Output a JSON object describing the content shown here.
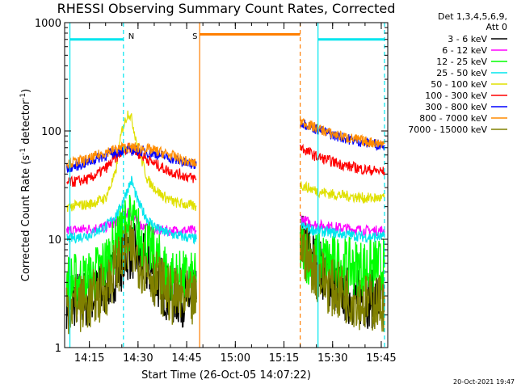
{
  "chart_data": {
    "type": "line",
    "title": "RHESSI Observing Summary Count Rates, Corrected",
    "xlabel": "Start Time (26-Oct-05 14:07:22)",
    "ylabel": "Corrected Count Rate (s⁻¹ detector⁻¹)",
    "ylabel_parts": [
      "Corrected Count Rate (s",
      "-1",
      " detector",
      "-1",
      ")"
    ],
    "y_scale": "log",
    "ylim": [
      1,
      1000
    ],
    "xlim": [
      "14:07:22",
      "15:47:00"
    ],
    "x_ticks": [
      "14:15",
      "14:30",
      "14:45",
      "15:00",
      "15:15",
      "15:30",
      "15:45"
    ],
    "y_ticks": [
      "1",
      "10",
      "100",
      "1000"
    ],
    "legend_header": [
      "Det 1,3,4,5,6,9,",
      "Att 0"
    ],
    "legend_position": "right",
    "gap": [
      "14:49:00",
      "15:20:00"
    ],
    "markers": [
      {
        "label": "",
        "time": "14:09:00",
        "color": "#00e5ee",
        "style": "solid"
      },
      {
        "label": "N",
        "time": "14:25:30",
        "color": "#00e5ee",
        "style": "dashed"
      },
      {
        "label": "",
        "time": "15:25:30",
        "color": "#00e5ee",
        "style": "solid"
      },
      {
        "label": "",
        "time": "15:46:00",
        "color": "#00e5ee",
        "style": "dashed"
      },
      {
        "label": "S",
        "time": "14:49:00",
        "color": "#ff7f00",
        "style": "solid"
      },
      {
        "label": "",
        "time": "15:20:00",
        "color": "#ff7f00",
        "style": "dashed"
      }
    ],
    "bars": [
      {
        "start": "14:09:00",
        "end": "14:25:30",
        "level": 700,
        "color": "#00e5ee"
      },
      {
        "start": "15:25:30",
        "end": "15:46:00",
        "level": 700,
        "color": "#00e5ee"
      },
      {
        "start": "14:49:00",
        "end": "15:20:00",
        "level": 780,
        "color": "#ff7f00"
      }
    ],
    "series": [
      {
        "name": "3 - 6 keV",
        "color": "#000000",
        "x": [
          "14:08",
          "14:15",
          "14:20",
          "14:23",
          "14:26",
          "14:28",
          "14:31",
          "14:35",
          "14:40",
          "14:48",
          "15:20",
          "15:21",
          "15:25",
          "15:30",
          "15:35",
          "15:40",
          "15:46"
        ],
        "y": [
          2.8,
          2.8,
          3.5,
          5.0,
          7.0,
          8.0,
          6.5,
          4.5,
          3.0,
          2.8,
          11.0,
          9.0,
          6.0,
          4.0,
          3.0,
          2.8,
          2.8
        ]
      },
      {
        "name": "6 - 12 keV",
        "color": "#ff00ff",
        "x": [
          "14:08",
          "14:15",
          "14:20",
          "14:24",
          "14:27",
          "14:30",
          "14:34",
          "14:40",
          "14:48",
          "15:20",
          "15:21",
          "15:25",
          "15:30",
          "15:35",
          "15:40",
          "15:46"
        ],
        "y": [
          12,
          12.5,
          13,
          15,
          18,
          14,
          12,
          12,
          12,
          16,
          15,
          13.5,
          13,
          12.5,
          12,
          12
        ]
      },
      {
        "name": "12 - 25 keV",
        "color": "#00ff00",
        "x": [
          "14:08",
          "14:15",
          "14:20",
          "14:23",
          "14:26",
          "14:28",
          "14:31",
          "14:35",
          "14:40",
          "14:48",
          "15:20",
          "15:21",
          "15:25",
          "15:30",
          "15:35",
          "15:40",
          "15:46"
        ],
        "y": [
          4.0,
          4.2,
          6.0,
          9.0,
          14.0,
          14.5,
          10.0,
          7.0,
          4.5,
          4.0,
          8.0,
          7.5,
          6.5,
          6.0,
          5.5,
          5.5,
          5.5
        ]
      },
      {
        "name": "25 - 50 keV",
        "color": "#00e5ee",
        "x": [
          "14:08",
          "14:15",
          "14:20",
          "14:24",
          "14:27",
          "14:28",
          "14:30",
          "14:33",
          "14:37",
          "14:41",
          "14:48",
          "15:20",
          "15:21",
          "15:25",
          "15:30",
          "15:35",
          "15:40",
          "15:46"
        ],
        "y": [
          10,
          11,
          13,
          18,
          30,
          35,
          22,
          15,
          12,
          11,
          10,
          14,
          13,
          12,
          11.5,
          11,
          10.5,
          10.5
        ]
      },
      {
        "name": "50 - 100 keV",
        "color": "#e0e000",
        "x": [
          "14:08",
          "14:15",
          "14:20",
          "14:23",
          "14:25",
          "14:27",
          "14:28",
          "14:30",
          "14:33",
          "14:37",
          "14:41",
          "14:48",
          "15:20",
          "15:21",
          "15:25",
          "15:30",
          "15:35",
          "15:40",
          "15:46"
        ],
        "y": [
          20,
          21,
          24,
          40,
          100,
          150,
          130,
          70,
          35,
          26,
          22,
          20,
          32,
          31,
          28,
          26,
          25,
          24,
          24
        ]
      },
      {
        "name": "100 - 300 keV",
        "color": "#ff0000",
        "x": [
          "14:08",
          "14:15",
          "14:20",
          "14:24",
          "14:27",
          "14:30",
          "14:35",
          "14:40",
          "14:45",
          "14:48",
          "15:20",
          "15:21",
          "15:25",
          "15:30",
          "15:35",
          "15:40",
          "15:46"
        ],
        "y": [
          33,
          36,
          45,
          60,
          72,
          62,
          50,
          42,
          38,
          36,
          72,
          68,
          58,
          52,
          47,
          44,
          42
        ]
      },
      {
        "name": "300 - 800 keV",
        "color": "#0000ff",
        "x": [
          "14:08",
          "14:15",
          "14:20",
          "14:25",
          "14:30",
          "14:35",
          "14:40",
          "14:45",
          "14:48",
          "15:20",
          "15:21",
          "15:25",
          "15:30",
          "15:35",
          "15:40",
          "15:46"
        ],
        "y": [
          45,
          52,
          60,
          66,
          66,
          62,
          56,
          50,
          48,
          122,
          118,
          104,
          92,
          84,
          78,
          74
        ]
      },
      {
        "name": "800 - 7000 keV",
        "color": "#ff8c00",
        "x": [
          "14:08",
          "14:15",
          "14:20",
          "14:25",
          "14:30",
          "14:35",
          "14:40",
          "14:45",
          "14:48",
          "15:20",
          "15:21",
          "15:25",
          "15:30",
          "15:35",
          "15:40",
          "15:46"
        ],
        "y": [
          50,
          55,
          64,
          70,
          70,
          66,
          60,
          52,
          50,
          124,
          120,
          106,
          94,
          86,
          80,
          76
        ]
      },
      {
        "name": "7000 - 15000 keV",
        "color": "#808000",
        "x": [
          "14:08",
          "14:15",
          "14:20",
          "14:23",
          "14:26",
          "14:28",
          "14:31",
          "14:35",
          "14:40",
          "14:48",
          "15:20",
          "15:21",
          "15:25",
          "15:30",
          "15:35",
          "15:40",
          "15:46"
        ],
        "y": [
          2.5,
          2.6,
          3.5,
          5.5,
          7.5,
          8.0,
          6.0,
          4.5,
          3.0,
          2.6,
          9.0,
          8.0,
          5.0,
          3.5,
          3.0,
          2.6,
          2.6
        ]
      }
    ]
  },
  "footer": {
    "timestamp": "20-Oct-2021 19:47"
  }
}
